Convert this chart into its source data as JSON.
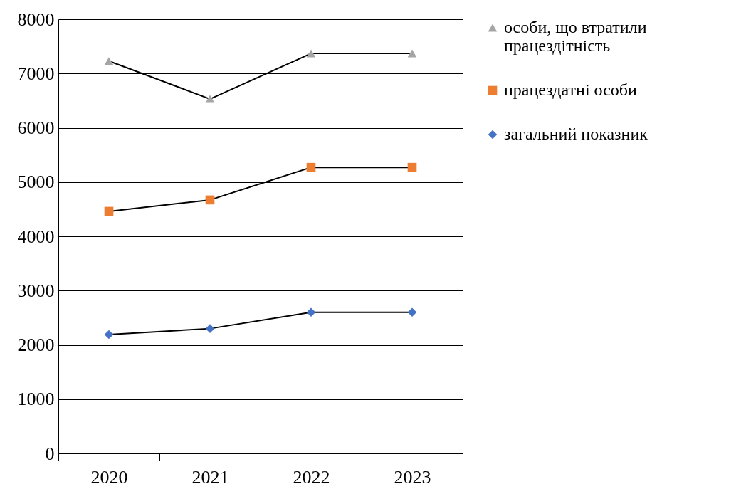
{
  "chart_data": {
    "type": "line",
    "categories": [
      "2020",
      "2021",
      "2022",
      "2023"
    ],
    "series": [
      {
        "name": "особи, що втратили працездітність",
        "color": "#a5a5a5",
        "marker": "triangle",
        "values": [
          7230,
          6530,
          7370,
          7370
        ]
      },
      {
        "name": "працездатні особи",
        "color": "#ed7d31",
        "marker": "square",
        "values": [
          4460,
          4670,
          5270,
          5270
        ]
      },
      {
        "name": "загальний показник",
        "color": "#4472c4",
        "marker": "diamond",
        "values": [
          2190,
          2300,
          2600,
          2600
        ]
      }
    ],
    "ylim": [
      0,
      8000
    ],
    "yticks": [
      0,
      1000,
      2000,
      3000,
      4000,
      5000,
      6000,
      7000,
      8000
    ],
    "grid": "y",
    "legend": "right",
    "line_style": "solid"
  }
}
